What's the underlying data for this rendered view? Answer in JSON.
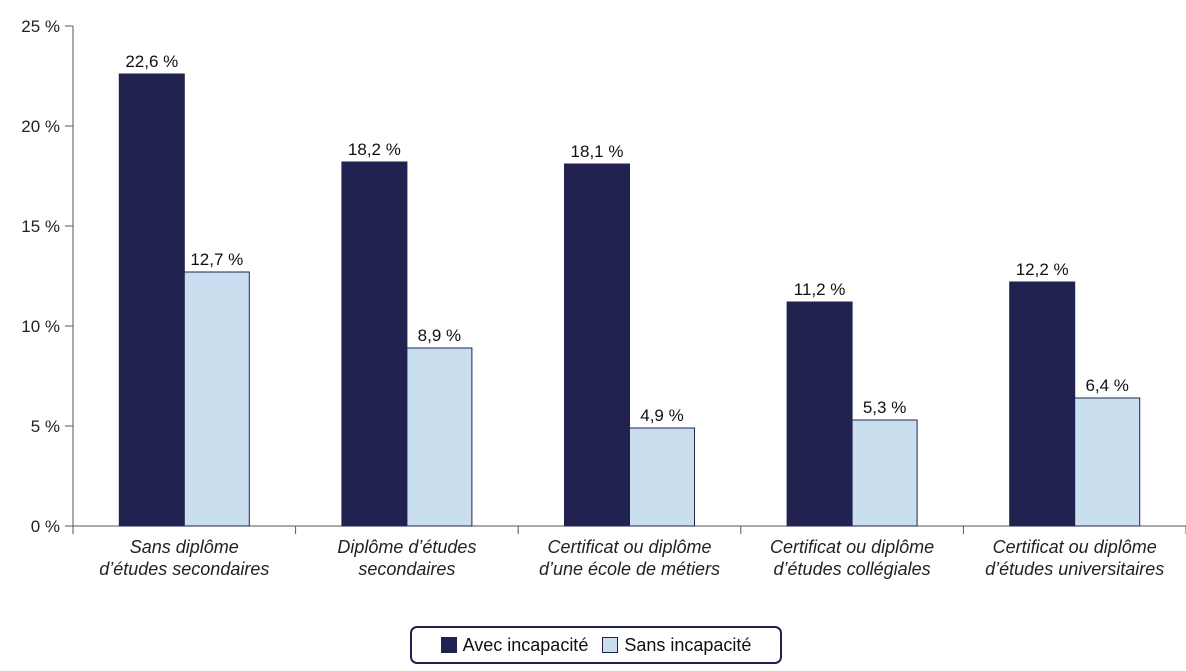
{
  "chart_data": {
    "type": "bar",
    "categories": [
      [
        "Sans diplôme",
        "d’études secondaires"
      ],
      [
        "Diplôme d’études",
        "secondaires"
      ],
      [
        "Certificat ou diplôme",
        "d’une école de métiers"
      ],
      [
        "Certificat ou diplôme",
        "d’études collégiales"
      ],
      [
        "Certificat ou diplôme",
        "d’études universitaires"
      ]
    ],
    "series": [
      {
        "name": "Avec incapacité",
        "color": "#212250",
        "values": [
          22.6,
          18.2,
          18.1,
          11.2,
          12.2
        ],
        "labels": [
          "22,6 %",
          "18,2 %",
          "18,1 %",
          "11,2 %",
          "12,2 %"
        ]
      },
      {
        "name": "Sans incapacité",
        "color": "#c9dff0",
        "values": [
          12.7,
          8.9,
          4.9,
          5.3,
          6.4
        ],
        "labels": [
          "12,7 %",
          "8,9 %",
          "4,9 %",
          "5,3 %",
          "6,4 %"
        ]
      }
    ],
    "yticks": [
      0,
      5,
      10,
      15,
      20,
      25
    ],
    "ytick_labels": [
      "0 %",
      "5 %",
      "10 %",
      "15 %",
      "20 %",
      "25 %"
    ],
    "ylim": [
      0,
      25
    ],
    "grid": false,
    "legend_position": "bottom-center"
  }
}
